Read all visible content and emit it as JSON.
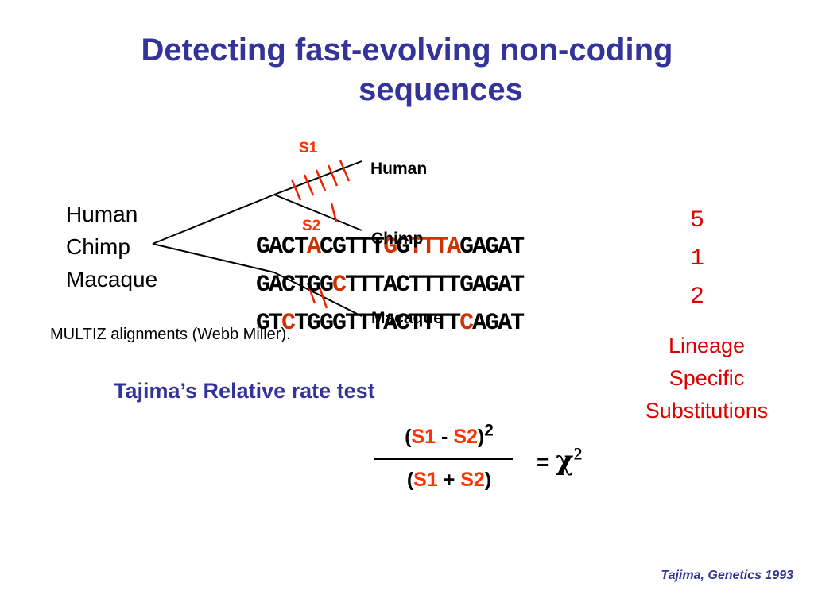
{
  "title": {
    "line1": "Detecting fast-evolving non-coding",
    "line2": "sequences"
  },
  "species_list": [
    "Human",
    "Chimp",
    "Macaque"
  ],
  "branch_labels": {
    "human": "Human",
    "chimp": "Chimp",
    "macaque": "Macaque",
    "s1": "S1",
    "s2": "S2"
  },
  "sequences": [
    {
      "species": "Human",
      "count": "5",
      "segments": [
        {
          "text": "GACT",
          "red": false
        },
        {
          "text": "A",
          "red": true
        },
        {
          "text": "CGTTT",
          "red": false
        },
        {
          "text": "G",
          "red": true
        },
        {
          "text": "G",
          "red": false
        },
        {
          "text": "TTTA",
          "red": true
        },
        {
          "text": "GAGAT",
          "red": false
        }
      ]
    },
    {
      "species": "Chimp",
      "count": "1",
      "segments": [
        {
          "text": "GACTGG",
          "red": false
        },
        {
          "text": "C",
          "red": true
        },
        {
          "text": "TTTACTTTTGAGAT",
          "red": false
        }
      ]
    },
    {
      "species": "Macaque",
      "count": "2",
      "segments": [
        {
          "text": "GT",
          "red": false
        },
        {
          "text": "C",
          "red": true
        },
        {
          "text": "TGGGTTTACTTTT",
          "red": false
        },
        {
          "text": "C",
          "red": true
        },
        {
          "text": "AGAT",
          "red": false
        }
      ]
    }
  ],
  "alignment_note": "MULTIZ alignments (Webb Miller).",
  "lineage_label": [
    "Lineage",
    "Specific",
    "Substitutions"
  ],
  "test_title": "Tajima’s Relative rate test",
  "formula": {
    "open_paren": "(",
    "close_paren": ")",
    "s1": "S1",
    "s2": "S2",
    "minus": "-",
    "plus": "+",
    "exponent": "2",
    "equals": "=",
    "chi": "χ"
  },
  "citation": "Tajima, Genetics 1993",
  "colors": {
    "title_blue": "#333399",
    "substitution_red": "#ff3300",
    "count_red": "#dd0000"
  }
}
